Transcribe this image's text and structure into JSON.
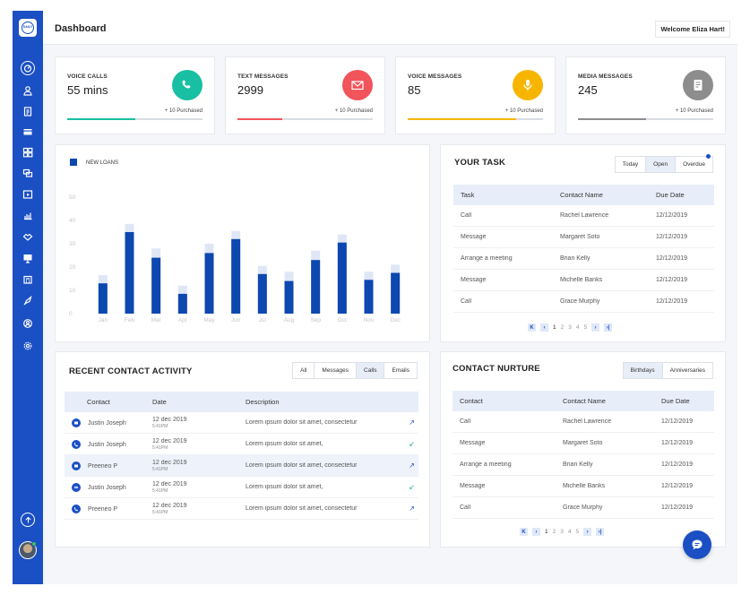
{
  "brand": {
    "logo_text": "DAILY",
    "accent": "#1b4fc4"
  },
  "header": {
    "title": "Dashboard",
    "welcome": "Welcome Eliza Hart!"
  },
  "sidebar": {
    "icons": [
      "dashboard-icon",
      "user-icon",
      "clipboard-icon",
      "credit-card-icon",
      "grid-icon",
      "chat-icon",
      "media-icon",
      "chart-icon",
      "handshake-icon",
      "monitor-icon",
      "calculator-icon",
      "rocket-icon",
      "settings-user-icon",
      "gear-icon"
    ],
    "bottom_icons": [
      "arrow-up-icon",
      "avatar"
    ]
  },
  "stats": [
    {
      "label": "VOICE CALLS",
      "value": "55 mins",
      "purchased": "+ 10 Purchased",
      "progress": 0.5,
      "color": "#19bfa2",
      "icon": "phone-icon"
    },
    {
      "label": "TEXT MESSAGES",
      "value": "2999",
      "purchased": "+ 10 Purchased",
      "progress": 0.33,
      "color": "#f2545b",
      "icon": "envelope-icon"
    },
    {
      "label": "VOICE MESSAGES",
      "value": "85",
      "purchased": "+ 10 Purchased",
      "progress": 0.8,
      "color": "#f7b500",
      "icon": "microphone-icon"
    },
    {
      "label": "MEDIA MESSAGES",
      "value": "245",
      "purchased": "+ 10 Purchased",
      "progress": 0.5,
      "color": "#8d8d8d",
      "icon": "document-icon"
    }
  ],
  "chart_data": {
    "type": "bar",
    "legend": [
      "NEW LOANS"
    ],
    "categories": [
      "Jan",
      "Feb",
      "Mar",
      "Apr",
      "May",
      "Jun",
      "Jul",
      "Aug",
      "Sep",
      "Oct",
      "Nov",
      "Dec"
    ],
    "series": [
      {
        "name": "NEW LOANS",
        "values": [
          13,
          35,
          24,
          8.5,
          26,
          32,
          17,
          14,
          23,
          30.5,
          14.5,
          17.5
        ],
        "color": "#0d47b0"
      }
    ],
    "background_values": [
      16.5,
      38.5,
      28,
      12,
      30,
      35.5,
      20.5,
      18,
      27,
      34,
      18,
      21
    ],
    "background_color": "#dfe6f5",
    "yticks": [
      0,
      10,
      20,
      30,
      40,
      50
    ],
    "ylim": [
      0,
      50
    ],
    "grid": false,
    "legend_position": "top-left"
  },
  "your_task": {
    "title": "YOUR TASK",
    "filters": [
      "Today",
      "Open",
      "Overdue"
    ],
    "selected_filter": "Open",
    "columns": [
      "Task",
      "Contact Name",
      "Due Date"
    ],
    "rows": [
      [
        "Call",
        "Rachel Lawrence",
        "12/12/2019"
      ],
      [
        "Message",
        "Margaret Soto",
        "12/12/2019"
      ],
      [
        "Arrange a meeting",
        "Brian Kelly",
        "12/12/2019"
      ],
      [
        "Message",
        "Michelle Banks",
        "12/12/2019"
      ],
      [
        "Call",
        "Grace Murphy",
        "12/12/2019"
      ]
    ],
    "pages": [
      "1",
      "2",
      "3",
      "4",
      "5"
    ],
    "current_page": "1"
  },
  "recent_activity": {
    "title": "RECENT CONTACT ACTIVITY",
    "filters": [
      "All",
      "Messages",
      "Calls",
      "Emails"
    ],
    "selected_filter": "Calls",
    "columns": [
      "Contact",
      "Date",
      "Description"
    ],
    "rows": [
      {
        "icon": "message-icon",
        "contact": "Justin Joseph",
        "date": "12 dec 2019",
        "time": "5:41PM",
        "description": "Lorem ipsum dolor sit amet, consectetur",
        "direction": "outgoing",
        "arrow": "↗",
        "arrow_color": "#1b4fc4"
      },
      {
        "icon": "phone-icon",
        "contact": "Justin Joseph",
        "date": "12 dec 2019",
        "time": "5:41PM",
        "description": "Lorem ipsum dolor sit amet,",
        "direction": "incoming",
        "arrow": "↙",
        "arrow_color": "#22b573"
      },
      {
        "icon": "message-icon",
        "contact": "Preeneo P",
        "date": "12 dec 2019",
        "time": "5:41PM",
        "description": "Lorem ipsum dolor sit amet, consectetur",
        "direction": "outgoing",
        "arrow": "↗",
        "arrow_color": "#1b4fc4",
        "highlight": true
      },
      {
        "icon": "voicemail-icon",
        "contact": "Justin Joseph",
        "date": "12 dec 2019",
        "time": "5:41PM",
        "description": "Lorem ipsum dolor sit amet,",
        "direction": "incoming",
        "arrow": "↙",
        "arrow_color": "#22b573"
      },
      {
        "icon": "phone-icon",
        "contact": "Preeneo P",
        "date": "12 dec 2019",
        "time": "5:41PM",
        "description": "Lorem ipsum dolor sit amet, consectetur",
        "direction": "outgoing",
        "arrow": "↗",
        "arrow_color": "#1b4fc4"
      }
    ]
  },
  "contact_nurture": {
    "title": "CONTACT NURTURE",
    "filters": [
      "Birthdays",
      "Anniversaries"
    ],
    "selected_filter": "Birthdays",
    "columns": [
      "Contact",
      "Contact Name",
      "Due Date"
    ],
    "rows": [
      [
        "Call",
        "Rachel Lawrence",
        "12/12/2019"
      ],
      [
        "Message",
        "Margaret Soto",
        "12/12/2019"
      ],
      [
        "Arrange a meeting",
        "Brian Kelly",
        "12/12/2019"
      ],
      [
        "Message",
        "Michelle Banks",
        "12/12/2019"
      ],
      [
        "Call",
        "Grace Murphy",
        "12/12/2019"
      ]
    ],
    "pages": [
      "1",
      "2",
      "3",
      "4",
      "5"
    ],
    "current_page": "1"
  },
  "pager_icons": {
    "first": "K",
    "prev": "‹",
    "next": "›",
    "last": "›|"
  }
}
